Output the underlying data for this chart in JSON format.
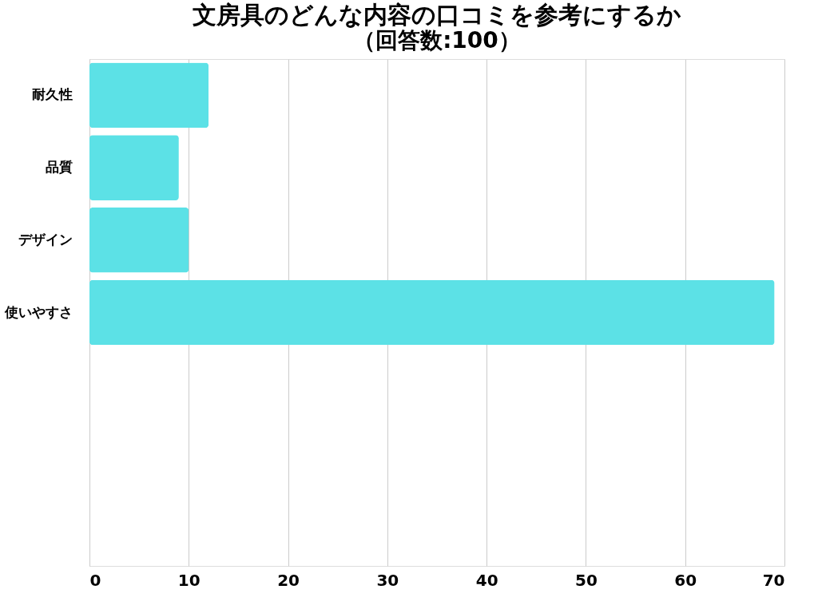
{
  "chart_data": {
    "type": "bar",
    "orientation": "horizontal",
    "title": "文房具のどんな内容の口コミを参考にするか",
    "subtitle": "（回答数:100）",
    "categories": [
      "耐久性",
      "品質",
      "デザイン",
      "使いやすさ",
      null,
      null,
      null
    ],
    "values": [
      12,
      9,
      10,
      69,
      null,
      null,
      null
    ],
    "color": "#5ce1e6",
    "xlim": [
      0,
      70
    ],
    "xticks": [
      0,
      10,
      20,
      30,
      40,
      50,
      60,
      70
    ],
    "grid": "x"
  }
}
